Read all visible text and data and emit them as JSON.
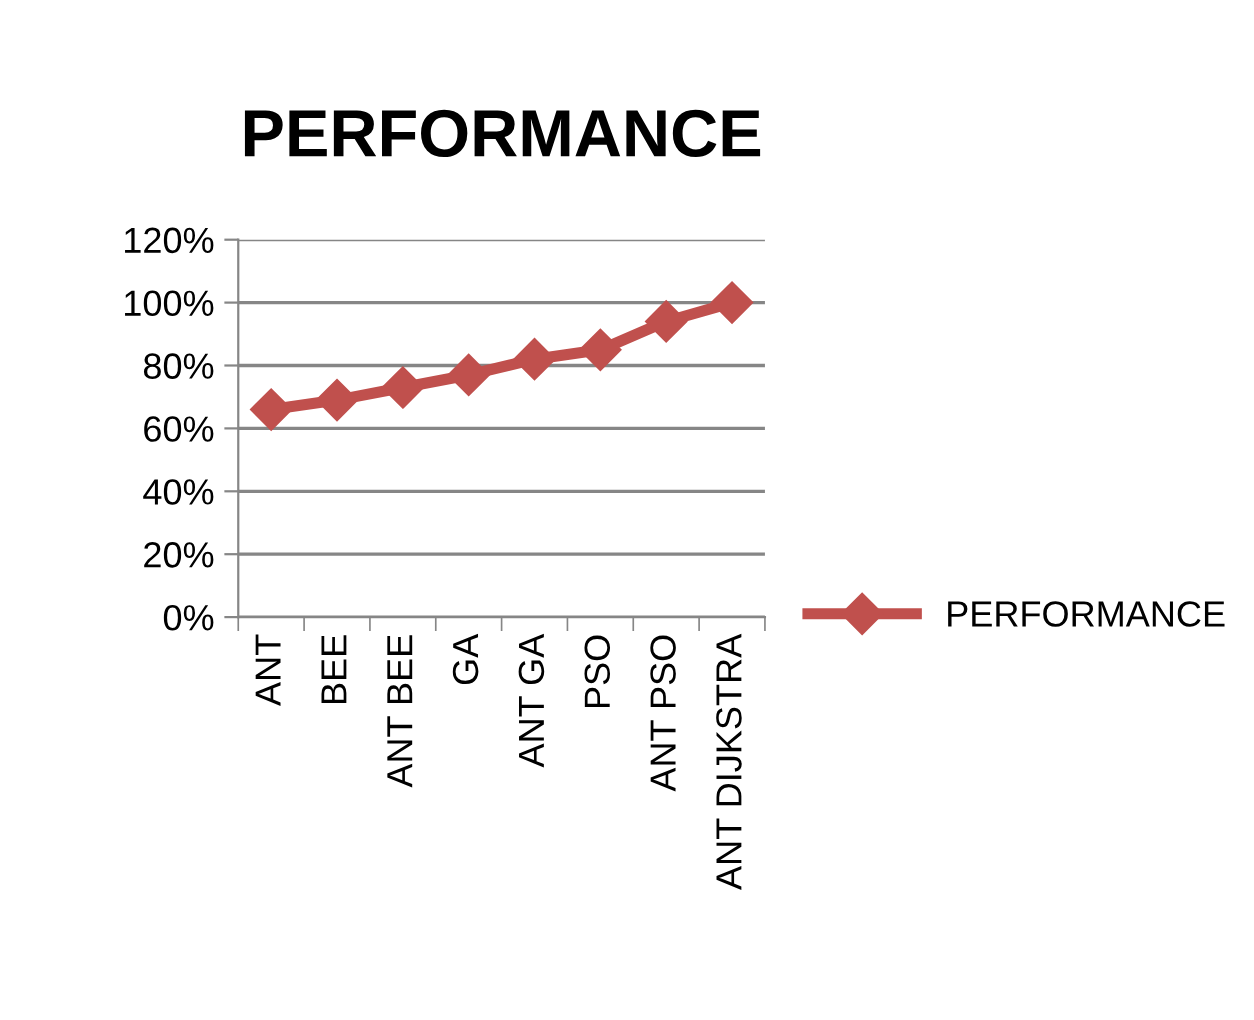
{
  "chart_data": {
    "type": "line",
    "title": "PERFORMANCE",
    "categories": [
      "ANT",
      "BEE",
      "ANT BEE",
      "GA",
      "ANT GA",
      "PSO",
      "ANT PSO",
      "ANT DIJKSTRA"
    ],
    "series": [
      {
        "name": "PERFORMANCE",
        "color": "#c0504d",
        "values": [
          66,
          69,
          73,
          77,
          82,
          85,
          94,
          100
        ]
      }
    ],
    "ylim": [
      0,
      120
    ],
    "yticks": [
      {
        "value": 0,
        "label": "0%"
      },
      {
        "value": 20,
        "label": "20%"
      },
      {
        "value": 40,
        "label": "40%"
      },
      {
        "value": 60,
        "label": "60%"
      },
      {
        "value": 80,
        "label": "80%"
      },
      {
        "value": 100,
        "label": "100%"
      },
      {
        "value": 120,
        "label": "120%"
      }
    ],
    "grid": "y",
    "legend": "right",
    "marker": "diamond",
    "line_style": "solid"
  }
}
